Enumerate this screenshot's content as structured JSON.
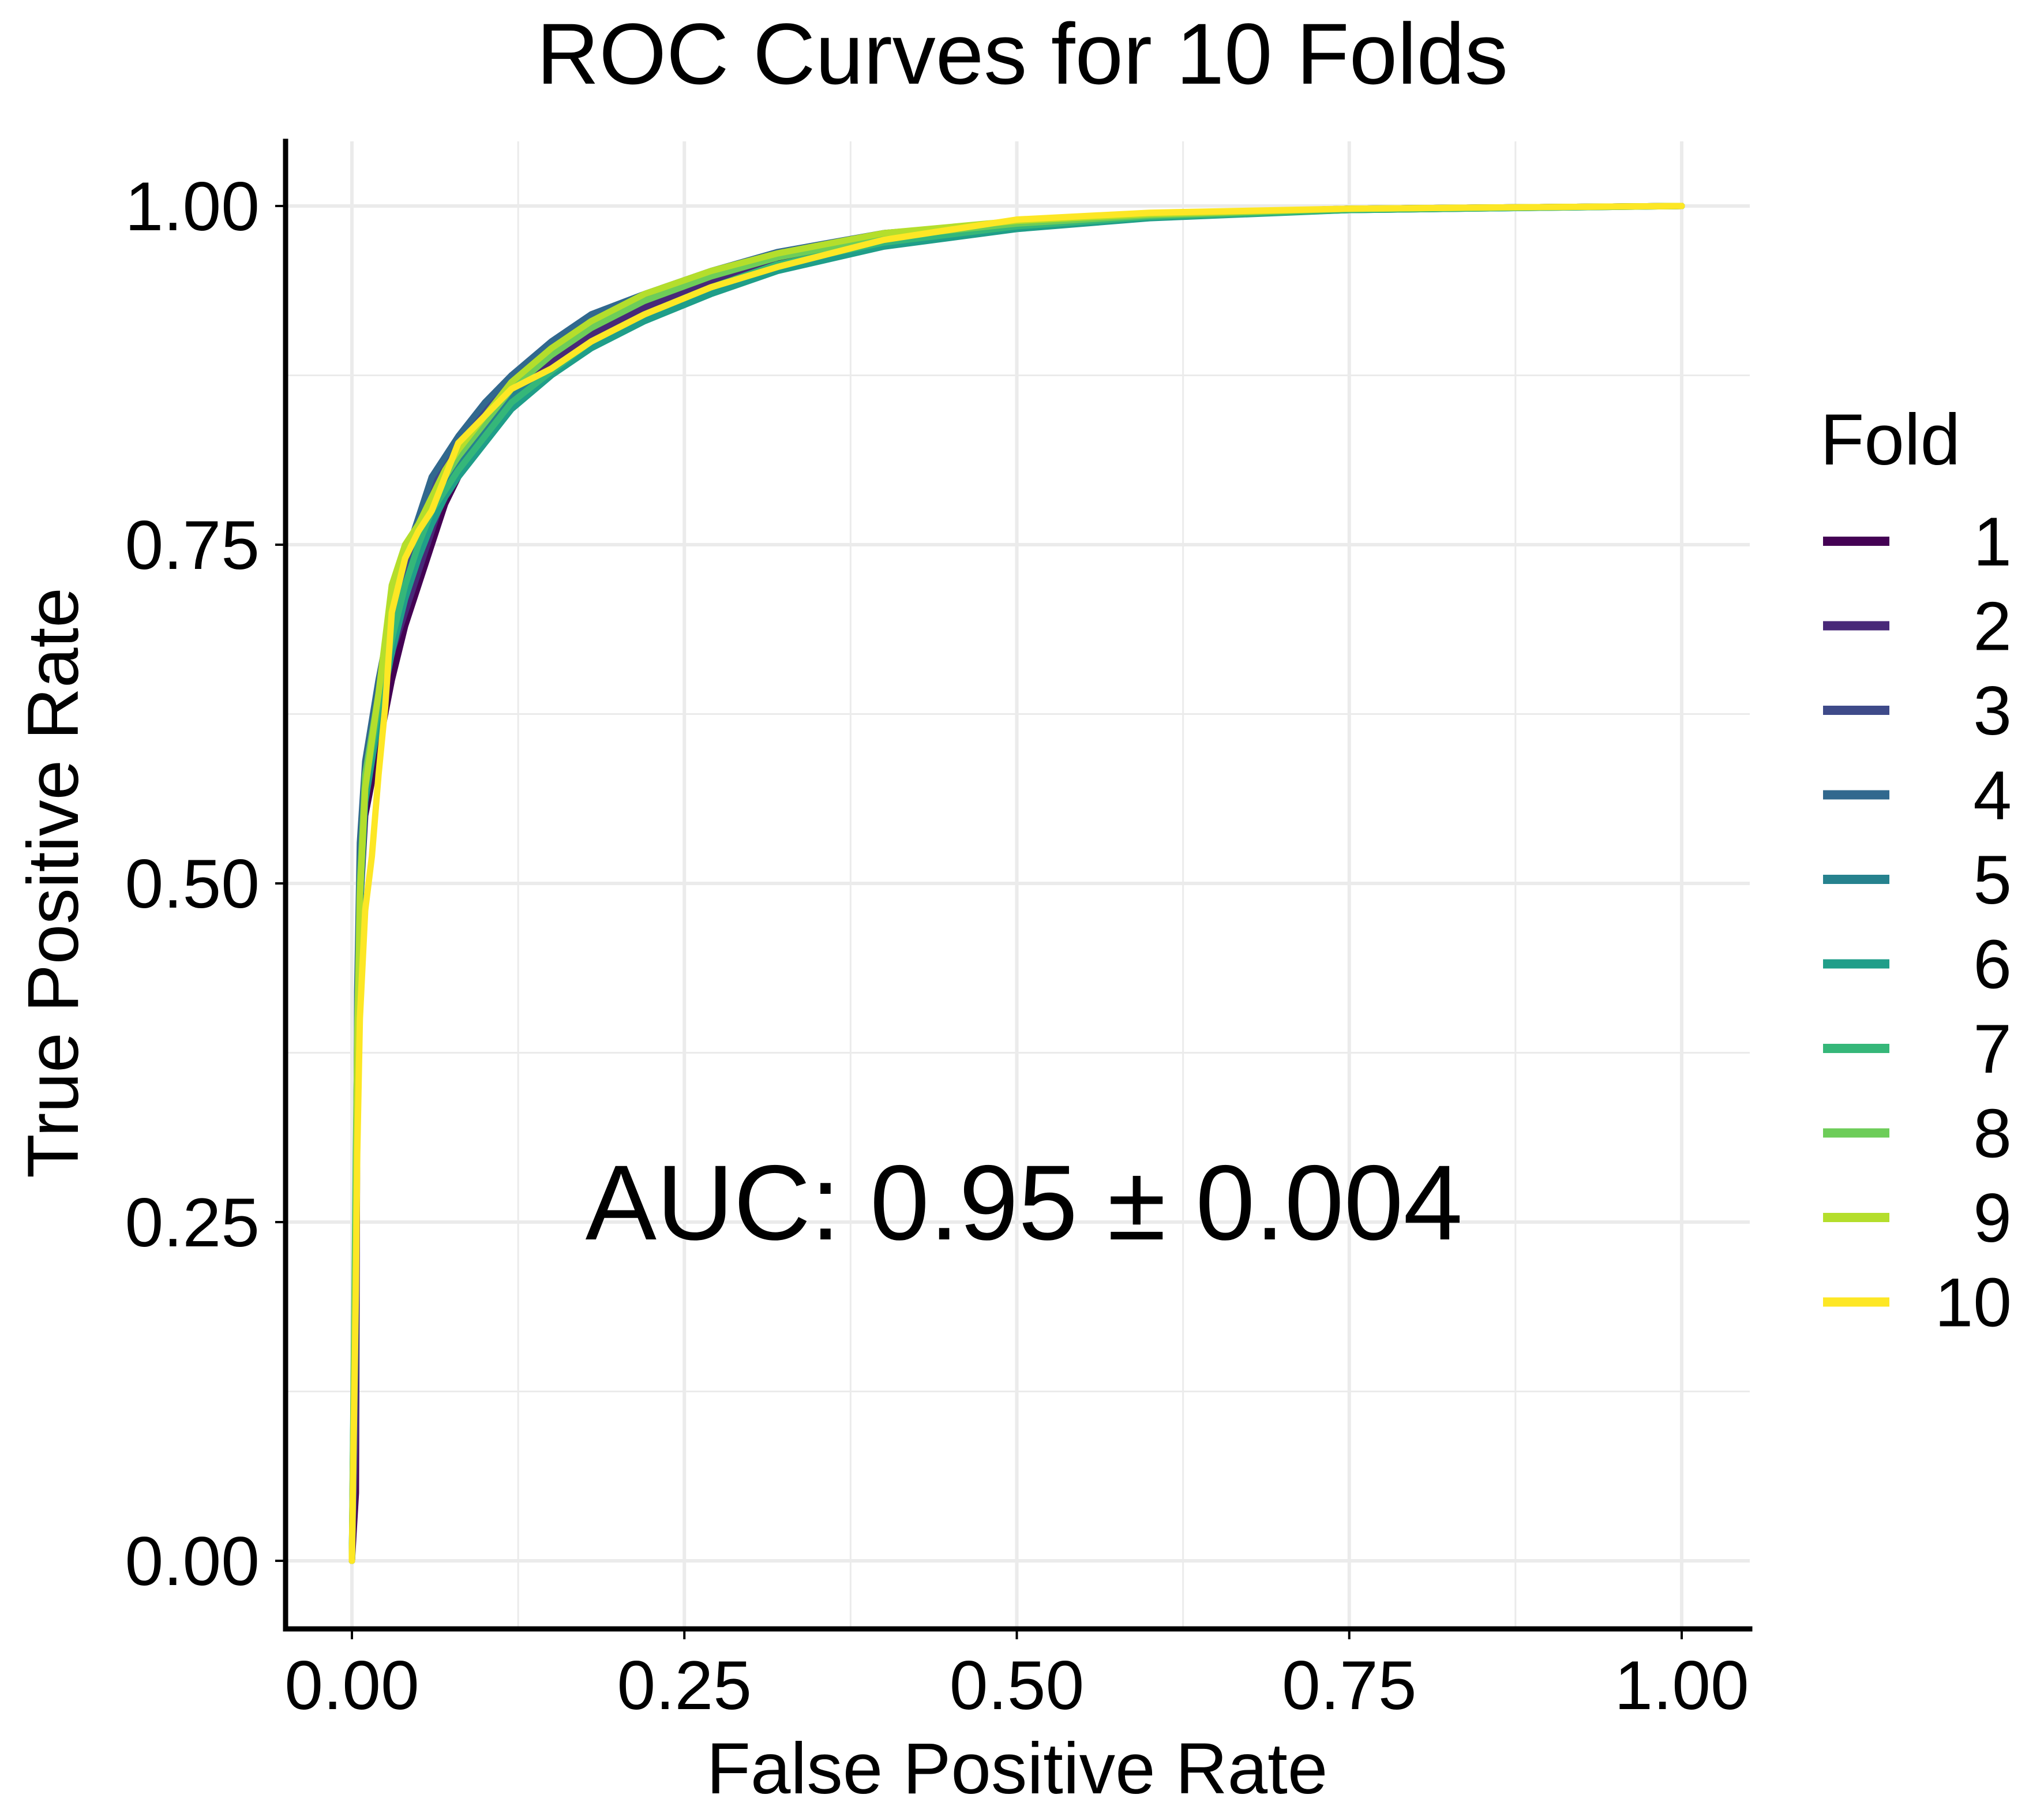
{
  "chart_data": {
    "type": "line",
    "title": "ROC Curves for 10 Folds",
    "xlabel": "False Positive Rate",
    "ylabel": "True Positive Rate",
    "xlim": [
      0,
      1
    ],
    "ylim": [
      0,
      1
    ],
    "xticks": [
      "0.00",
      "0.25",
      "0.50",
      "0.75",
      "1.00"
    ],
    "yticks": [
      "0.00",
      "0.25",
      "0.50",
      "0.75",
      "1.00"
    ],
    "grid": true,
    "legend_title": "Fold",
    "legend_position": "right",
    "annotation": "AUC: 0.95 ± 0.004",
    "series": [
      {
        "name": "1",
        "color": "#440154",
        "points": [
          [
            0,
            0
          ],
          [
            0.003,
            0.05
          ],
          [
            0.004,
            0.35
          ],
          [
            0.006,
            0.48
          ],
          [
            0.01,
            0.55
          ],
          [
            0.02,
            0.6
          ],
          [
            0.03,
            0.65
          ],
          [
            0.04,
            0.69
          ],
          [
            0.05,
            0.72
          ],
          [
            0.06,
            0.75
          ],
          [
            0.07,
            0.78
          ],
          [
            0.08,
            0.8
          ],
          [
            0.1,
            0.83
          ],
          [
            0.12,
            0.86
          ],
          [
            0.15,
            0.88
          ],
          [
            0.18,
            0.9
          ],
          [
            0.22,
            0.92
          ],
          [
            0.27,
            0.94
          ],
          [
            0.32,
            0.96
          ],
          [
            0.4,
            0.975
          ],
          [
            0.5,
            0.985
          ],
          [
            0.6,
            0.993
          ],
          [
            0.75,
            0.998
          ],
          [
            1,
            1
          ]
        ]
      },
      {
        "name": "2",
        "color": "#482878",
        "points": [
          [
            0,
            0
          ],
          [
            0.003,
            0.1
          ],
          [
            0.004,
            0.38
          ],
          [
            0.006,
            0.5
          ],
          [
            0.01,
            0.57
          ],
          [
            0.02,
            0.62
          ],
          [
            0.03,
            0.67
          ],
          [
            0.04,
            0.7
          ],
          [
            0.05,
            0.73
          ],
          [
            0.06,
            0.76
          ],
          [
            0.07,
            0.79
          ],
          [
            0.08,
            0.81
          ],
          [
            0.1,
            0.84
          ],
          [
            0.12,
            0.865
          ],
          [
            0.15,
            0.885
          ],
          [
            0.18,
            0.905
          ],
          [
            0.22,
            0.925
          ],
          [
            0.27,
            0.945
          ],
          [
            0.32,
            0.962
          ],
          [
            0.4,
            0.978
          ],
          [
            0.5,
            0.987
          ],
          [
            0.6,
            0.994
          ],
          [
            0.75,
            0.998
          ],
          [
            1,
            1
          ]
        ]
      },
      {
        "name": "3",
        "color": "#3E4A89",
        "points": [
          [
            0,
            0
          ],
          [
            0.003,
            0.15
          ],
          [
            0.004,
            0.4
          ],
          [
            0.006,
            0.52
          ],
          [
            0.01,
            0.58
          ],
          [
            0.02,
            0.64
          ],
          [
            0.03,
            0.69
          ],
          [
            0.04,
            0.73
          ],
          [
            0.05,
            0.76
          ],
          [
            0.06,
            0.79
          ],
          [
            0.07,
            0.81
          ],
          [
            0.08,
            0.825
          ],
          [
            0.1,
            0.85
          ],
          [
            0.12,
            0.87
          ],
          [
            0.15,
            0.895
          ],
          [
            0.18,
            0.915
          ],
          [
            0.22,
            0.93
          ],
          [
            0.27,
            0.95
          ],
          [
            0.32,
            0.965
          ],
          [
            0.4,
            0.98
          ],
          [
            0.5,
            0.988
          ],
          [
            0.6,
            0.994
          ],
          [
            0.75,
            0.998
          ],
          [
            1,
            1
          ]
        ]
      },
      {
        "name": "4",
        "color": "#31688E",
        "points": [
          [
            0,
            0
          ],
          [
            0.003,
            0.2
          ],
          [
            0.004,
            0.42
          ],
          [
            0.006,
            0.53
          ],
          [
            0.01,
            0.59
          ],
          [
            0.02,
            0.65
          ],
          [
            0.03,
            0.7
          ],
          [
            0.04,
            0.74
          ],
          [
            0.05,
            0.77
          ],
          [
            0.06,
            0.8
          ],
          [
            0.07,
            0.815
          ],
          [
            0.08,
            0.83
          ],
          [
            0.1,
            0.855
          ],
          [
            0.12,
            0.875
          ],
          [
            0.15,
            0.9
          ],
          [
            0.18,
            0.92
          ],
          [
            0.22,
            0.935
          ],
          [
            0.27,
            0.952
          ],
          [
            0.32,
            0.966
          ],
          [
            0.4,
            0.98
          ],
          [
            0.5,
            0.988
          ],
          [
            0.6,
            0.994
          ],
          [
            0.75,
            0.998
          ],
          [
            1,
            1
          ]
        ]
      },
      {
        "name": "5",
        "color": "#26828E",
        "points": [
          [
            0,
            0
          ],
          [
            0.003,
            0.25
          ],
          [
            0.004,
            0.4
          ],
          [
            0.006,
            0.5
          ],
          [
            0.01,
            0.57
          ],
          [
            0.02,
            0.63
          ],
          [
            0.03,
            0.68
          ],
          [
            0.04,
            0.72
          ],
          [
            0.05,
            0.75
          ],
          [
            0.06,
            0.77
          ],
          [
            0.07,
            0.79
          ],
          [
            0.08,
            0.81
          ],
          [
            0.1,
            0.835
          ],
          [
            0.12,
            0.86
          ],
          [
            0.15,
            0.88
          ],
          [
            0.18,
            0.9
          ],
          [
            0.22,
            0.92
          ],
          [
            0.27,
            0.94
          ],
          [
            0.32,
            0.955
          ],
          [
            0.4,
            0.972
          ],
          [
            0.5,
            0.984
          ],
          [
            0.6,
            0.992
          ],
          [
            0.75,
            0.997
          ],
          [
            1,
            1
          ]
        ]
      },
      {
        "name": "6",
        "color": "#1F9E89",
        "points": [
          [
            0,
            0
          ],
          [
            0.003,
            0.28
          ],
          [
            0.004,
            0.38
          ],
          [
            0.006,
            0.48
          ],
          [
            0.01,
            0.56
          ],
          [
            0.02,
            0.62
          ],
          [
            0.03,
            0.67
          ],
          [
            0.04,
            0.71
          ],
          [
            0.05,
            0.74
          ],
          [
            0.06,
            0.765
          ],
          [
            0.07,
            0.785
          ],
          [
            0.08,
            0.8
          ],
          [
            0.1,
            0.825
          ],
          [
            0.12,
            0.85
          ],
          [
            0.15,
            0.875
          ],
          [
            0.18,
            0.895
          ],
          [
            0.22,
            0.915
          ],
          [
            0.27,
            0.935
          ],
          [
            0.32,
            0.952
          ],
          [
            0.4,
            0.97
          ],
          [
            0.5,
            0.983
          ],
          [
            0.6,
            0.991
          ],
          [
            0.75,
            0.997
          ],
          [
            1,
            1
          ]
        ]
      },
      {
        "name": "7",
        "color": "#35B779",
        "points": [
          [
            0,
            0
          ],
          [
            0.003,
            0.3
          ],
          [
            0.004,
            0.38
          ],
          [
            0.006,
            0.49
          ],
          [
            0.01,
            0.57
          ],
          [
            0.02,
            0.63
          ],
          [
            0.03,
            0.68
          ],
          [
            0.04,
            0.72
          ],
          [
            0.05,
            0.75
          ],
          [
            0.06,
            0.775
          ],
          [
            0.07,
            0.79
          ],
          [
            0.08,
            0.805
          ],
          [
            0.1,
            0.83
          ],
          [
            0.12,
            0.855
          ],
          [
            0.15,
            0.878
          ],
          [
            0.18,
            0.9
          ],
          [
            0.22,
            0.92
          ],
          [
            0.27,
            0.94
          ],
          [
            0.32,
            0.957
          ],
          [
            0.4,
            0.973
          ],
          [
            0.5,
            0.985
          ],
          [
            0.6,
            0.992
          ],
          [
            0.75,
            0.997
          ],
          [
            1,
            1
          ]
        ]
      },
      {
        "name": "8",
        "color": "#6DCD59",
        "points": [
          [
            0,
            0
          ],
          [
            0.003,
            0.27
          ],
          [
            0.004,
            0.39
          ],
          [
            0.006,
            0.5
          ],
          [
            0.01,
            0.58
          ],
          [
            0.02,
            0.64
          ],
          [
            0.03,
            0.7
          ],
          [
            0.04,
            0.74
          ],
          [
            0.05,
            0.76
          ],
          [
            0.06,
            0.78
          ],
          [
            0.07,
            0.8
          ],
          [
            0.08,
            0.815
          ],
          [
            0.1,
            0.84
          ],
          [
            0.12,
            0.865
          ],
          [
            0.15,
            0.89
          ],
          [
            0.18,
            0.91
          ],
          [
            0.22,
            0.93
          ],
          [
            0.27,
            0.948
          ],
          [
            0.32,
            0.962
          ],
          [
            0.4,
            0.977
          ],
          [
            0.5,
            0.987
          ],
          [
            0.6,
            0.993
          ],
          [
            0.75,
            0.998
          ],
          [
            1,
            1
          ]
        ]
      },
      {
        "name": "9",
        "color": "#B4DE2C",
        "points": [
          [
            0,
            0
          ],
          [
            0.003,
            0.22
          ],
          [
            0.004,
            0.37
          ],
          [
            0.006,
            0.49
          ],
          [
            0.01,
            0.57
          ],
          [
            0.02,
            0.64
          ],
          [
            0.03,
            0.72
          ],
          [
            0.04,
            0.75
          ],
          [
            0.05,
            0.765
          ],
          [
            0.06,
            0.785
          ],
          [
            0.07,
            0.805
          ],
          [
            0.08,
            0.82
          ],
          [
            0.1,
            0.845
          ],
          [
            0.12,
            0.87
          ],
          [
            0.15,
            0.895
          ],
          [
            0.18,
            0.915
          ],
          [
            0.22,
            0.935
          ],
          [
            0.27,
            0.952
          ],
          [
            0.32,
            0.965
          ],
          [
            0.4,
            0.98
          ],
          [
            0.5,
            0.989
          ],
          [
            0.6,
            0.994
          ],
          [
            0.75,
            0.998
          ],
          [
            1,
            1
          ]
        ]
      },
      {
        "name": "10",
        "color": "#FDE725",
        "points": [
          [
            0,
            0
          ],
          [
            0.003,
            0.2
          ],
          [
            0.004,
            0.3
          ],
          [
            0.006,
            0.4
          ],
          [
            0.01,
            0.48
          ],
          [
            0.015,
            0.52
          ],
          [
            0.02,
            0.58
          ],
          [
            0.025,
            0.63
          ],
          [
            0.03,
            0.7
          ],
          [
            0.04,
            0.74
          ],
          [
            0.05,
            0.76
          ],
          [
            0.06,
            0.775
          ],
          [
            0.07,
            0.8
          ],
          [
            0.08,
            0.825
          ],
          [
            0.1,
            0.845
          ],
          [
            0.12,
            0.865
          ],
          [
            0.15,
            0.88
          ],
          [
            0.18,
            0.9
          ],
          [
            0.22,
            0.92
          ],
          [
            0.27,
            0.94
          ],
          [
            0.32,
            0.955
          ],
          [
            0.4,
            0.975
          ],
          [
            0.5,
            0.99
          ],
          [
            0.6,
            0.995
          ],
          [
            0.75,
            0.998
          ],
          [
            1,
            1
          ]
        ]
      }
    ]
  }
}
